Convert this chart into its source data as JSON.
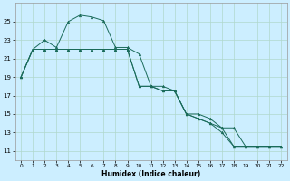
{
  "xlabel": "Humidex (Indice chaleur)",
  "background_color": "#cceeff",
  "grid_color": "#b0d8cc",
  "line_color": "#1a6b5a",
  "xlim": [
    -0.5,
    22.5
  ],
  "ylim": [
    10.0,
    27.0
  ],
  "yticks": [
    11,
    13,
    15,
    17,
    19,
    21,
    23,
    25
  ],
  "xticks": [
    0,
    1,
    2,
    3,
    4,
    5,
    6,
    7,
    8,
    9,
    10,
    11,
    12,
    13,
    14,
    15,
    16,
    17,
    18,
    19,
    20,
    21,
    22
  ],
  "line1_x": [
    0,
    1,
    2,
    3,
    4,
    5,
    6,
    7,
    8,
    9,
    10,
    11,
    12,
    13,
    14,
    15,
    16,
    17,
    18,
    19,
    20,
    21,
    22
  ],
  "line1_y": [
    19.0,
    22.0,
    23.0,
    22.2,
    25.0,
    25.7,
    25.5,
    25.1,
    22.2,
    22.2,
    21.5,
    18.0,
    18.0,
    17.5,
    15.0,
    15.0,
    14.5,
    13.5,
    11.5,
    11.5,
    11.5,
    11.5,
    11.5
  ],
  "line2_x": [
    0,
    1,
    2,
    3,
    4,
    5,
    6,
    7,
    8,
    9,
    10,
    11,
    12,
    13,
    14,
    15,
    16,
    17,
    18,
    19,
    20,
    21,
    22
  ],
  "line2_y": [
    19.0,
    22.0,
    22.0,
    22.0,
    22.0,
    22.0,
    22.0,
    22.0,
    22.0,
    22.0,
    18.0,
    18.0,
    17.5,
    17.5,
    15.0,
    14.5,
    14.0,
    13.5,
    13.5,
    11.5,
    11.5,
    11.5,
    11.5
  ],
  "line3_x": [
    0,
    1,
    2,
    3,
    4,
    5,
    6,
    7,
    8,
    9,
    10,
    11,
    12,
    13,
    14,
    15,
    16,
    17,
    18,
    19,
    20,
    21,
    22
  ],
  "line3_y": [
    19.0,
    22.0,
    22.0,
    22.0,
    22.0,
    22.0,
    22.0,
    22.0,
    22.0,
    22.0,
    18.0,
    18.0,
    17.5,
    17.5,
    15.0,
    14.5,
    14.0,
    13.0,
    11.5,
    11.5,
    11.5,
    11.5,
    11.5
  ],
  "tick_fontsize": 5,
  "xlabel_fontsize": 5.5,
  "marker_size": 2.0,
  "line_width": 0.7
}
